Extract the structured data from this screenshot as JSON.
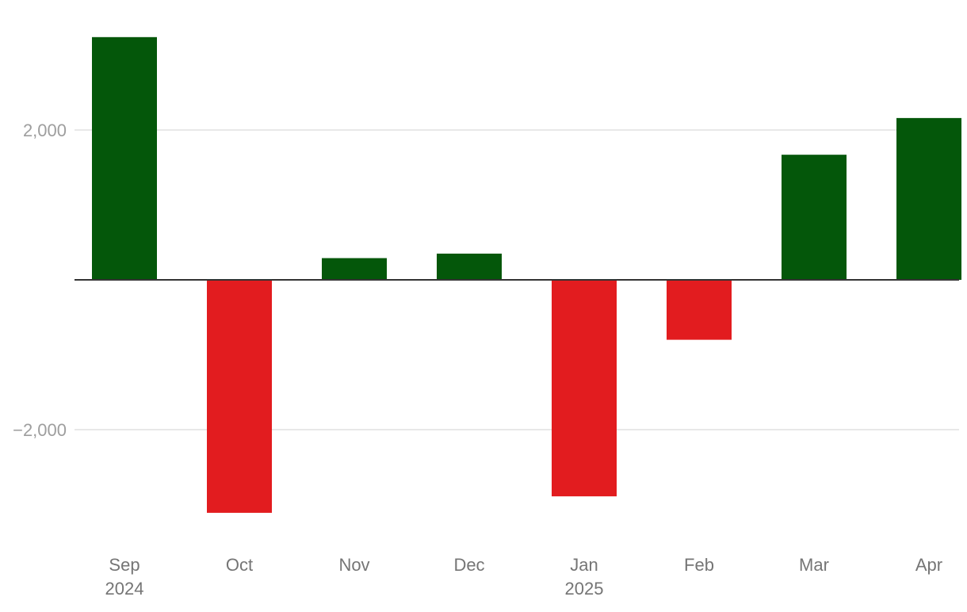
{
  "chart_data": {
    "type": "bar",
    "title": "",
    "xlabel": "",
    "ylabel": "",
    "categories": [
      "Sep",
      "Oct",
      "Nov",
      "Dec",
      "Jan",
      "Feb",
      "Mar",
      "Apr"
    ],
    "category_sublabels": [
      "2024",
      "",
      "",
      "",
      "2025",
      "",
      "",
      ""
    ],
    "values": [
      3240,
      -3110,
      290,
      350,
      -2890,
      -800,
      1670,
      2160
    ],
    "ylim": [
      -3500,
      3500
    ],
    "yticks": [
      {
        "value": 2000,
        "label": "2,000"
      },
      {
        "value": -2000,
        "label": "−2,000"
      }
    ],
    "grid": true,
    "legend": "none",
    "colors": {
      "positive": "#04570a",
      "negative": "#e21c1f",
      "zero_line": "#333333",
      "grid": "#e0e0e0",
      "tick_text_y": "#9e9e9e",
      "tick_text_x": "#757575"
    }
  }
}
